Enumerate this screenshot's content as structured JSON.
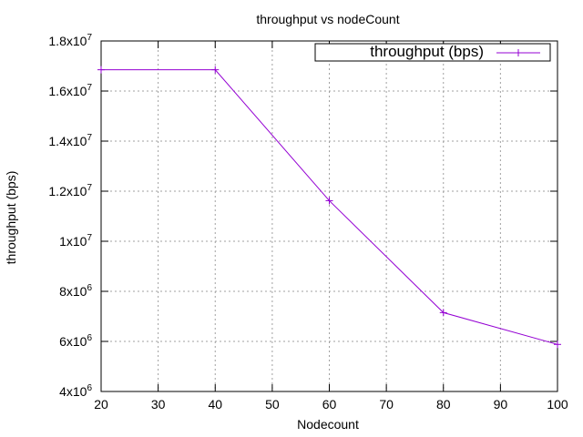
{
  "chart_data": {
    "type": "line",
    "title": "throughput vs nodeCount",
    "xlabel": "Nodecount",
    "ylabel": "throughput (bps)",
    "xlim": [
      20,
      100
    ],
    "ylim": [
      4000000,
      18000000
    ],
    "x_ticks": [
      20,
      30,
      40,
      50,
      60,
      70,
      80,
      90,
      100
    ],
    "x_tick_labels": [
      "20",
      "30",
      "40",
      "50",
      "60",
      "70",
      "80",
      "90",
      "100"
    ],
    "y_ticks": [
      {
        "value": 4000000,
        "mantissa": "4",
        "base": "x10",
        "exp": "6"
      },
      {
        "value": 6000000,
        "mantissa": "6",
        "base": "x10",
        "exp": "6"
      },
      {
        "value": 8000000,
        "mantissa": "8",
        "base": "x10",
        "exp": "6"
      },
      {
        "value": 10000000,
        "mantissa": "1",
        "base": "x10",
        "exp": "7"
      },
      {
        "value": 12000000,
        "mantissa": "1.2",
        "base": "x10",
        "exp": "7"
      },
      {
        "value": 14000000,
        "mantissa": "1.4",
        "base": "x10",
        "exp": "7"
      },
      {
        "value": 16000000,
        "mantissa": "1.6",
        "base": "x10",
        "exp": "7"
      },
      {
        "value": 18000000,
        "mantissa": "1.8",
        "base": "x10",
        "exp": "7"
      }
    ],
    "grid": true,
    "legend_position": "top-right",
    "series": [
      {
        "name": "throughput (bps)",
        "color": "#9400d3",
        "marker": "plus",
        "x": [
          20,
          40,
          60,
          80,
          100
        ],
        "y": [
          16850000,
          16850000,
          11620000,
          7150000,
          5880000
        ]
      }
    ]
  }
}
